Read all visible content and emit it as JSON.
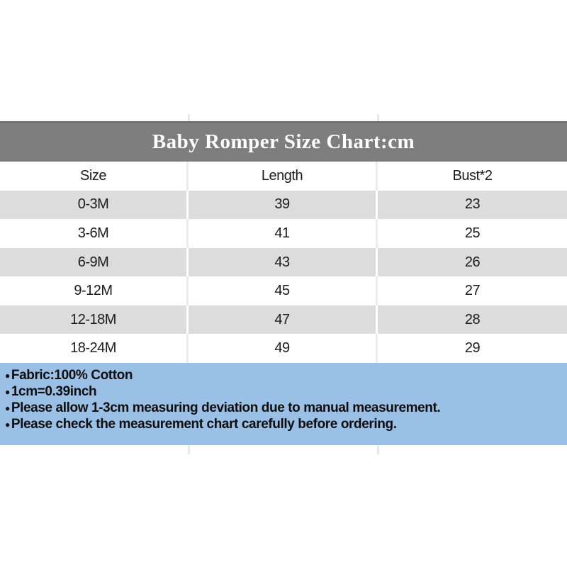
{
  "title_bar": {
    "title": "Baby Romper Size Chart:cm",
    "bg_color": "#7e7e7e",
    "text_color": "#ffffff"
  },
  "table": {
    "headers": [
      "Size",
      "Length",
      "Bust*2"
    ],
    "rows": [
      [
        "0-3M",
        "39",
        "23"
      ],
      [
        "3-6M",
        "41",
        "25"
      ],
      [
        "6-9M",
        "43",
        "26"
      ],
      [
        "9-12M",
        "45",
        "27"
      ],
      [
        "12-18M",
        "47",
        "28"
      ],
      [
        "18-24M",
        "49",
        "29"
      ]
    ],
    "stripe_color": "#dcdcdc"
  },
  "footer": {
    "bullet": "●",
    "lines": [
      "Fabric:100% Cotton",
      "1cm=0.39inch",
      "Please allow 1-3cm measuring deviation due to manual measurement.",
      "Please check the measurement chart carefully before ordering."
    ],
    "bg_color": "#9ac1e5",
    "text_color": "#0d0d0d"
  }
}
